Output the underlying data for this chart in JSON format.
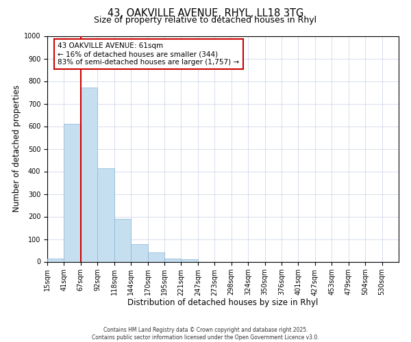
{
  "title": "43, OAKVILLE AVENUE, RHYL, LL18 3TG",
  "subtitle": "Size of property relative to detached houses in Rhyl",
  "xlabel": "Distribution of detached houses by size in Rhyl",
  "ylabel": "Number of detached properties",
  "bin_labels": [
    "15sqm",
    "41sqm",
    "67sqm",
    "92sqm",
    "118sqm",
    "144sqm",
    "170sqm",
    "195sqm",
    "221sqm",
    "247sqm",
    "273sqm",
    "298sqm",
    "324sqm",
    "350sqm",
    "376sqm",
    "401sqm",
    "427sqm",
    "453sqm",
    "479sqm",
    "504sqm",
    "530sqm"
  ],
  "bar_values": [
    15,
    610,
    770,
    415,
    190,
    78,
    40,
    15,
    10,
    0,
    0,
    0,
    0,
    0,
    0,
    0,
    0,
    0,
    0,
    0,
    0
  ],
  "bar_color": "#c5dff0",
  "bar_edge_color": "#8ab4d4",
  "vline_color": "#cc0000",
  "annotation_title": "43 OAKVILLE AVENUE: 61sqm",
  "annotation_line1": "← 16% of detached houses are smaller (344)",
  "annotation_line2": "83% of semi-detached houses are larger (1,757) →",
  "annotation_box_color": "#ffffff",
  "annotation_box_edge": "#cc0000",
  "ylim": [
    0,
    1000
  ],
  "yticks": [
    0,
    100,
    200,
    300,
    400,
    500,
    600,
    700,
    800,
    900,
    1000
  ],
  "bg_color": "#ffffff",
  "grid_color": "#d0d8e8",
  "footer1": "Contains HM Land Registry data © Crown copyright and database right 2025.",
  "footer2": "Contains public sector information licensed under the Open Government Licence v3.0.",
  "title_fontsize": 10.5,
  "subtitle_fontsize": 9,
  "axis_label_fontsize": 8.5,
  "tick_fontsize": 7,
  "annotation_fontsize": 7.5
}
